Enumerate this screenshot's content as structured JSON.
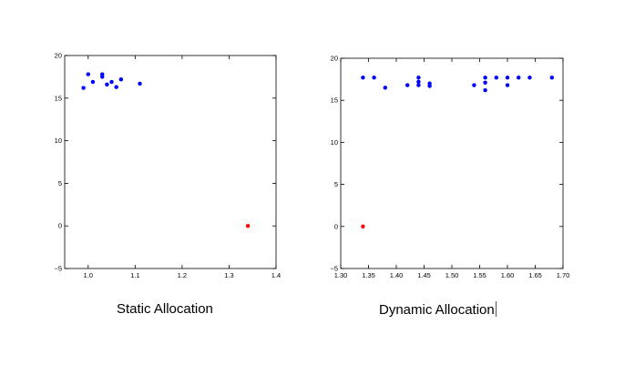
{
  "colors": {
    "series_primary": "#0000ff",
    "series_outlier": "#ff0000",
    "axis": "#000000"
  },
  "chart_data": [
    {
      "type": "scatter",
      "title": "Static Allocation",
      "xlabel": "",
      "ylabel": "",
      "xlim": [
        0.95,
        1.4
      ],
      "ylim": [
        -5,
        20
      ],
      "xticks": [
        "1.0",
        "1.1",
        "1.2",
        "1.3",
        "1.4"
      ],
      "yticks": [
        "−5",
        "0",
        "5",
        "10",
        "15",
        "20"
      ],
      "grid": false,
      "series": [
        {
          "color": "#0000ff",
          "points": [
            [
              0.99,
              16.2
            ],
            [
              1.0,
              17.8
            ],
            [
              1.01,
              16.9
            ],
            [
              1.03,
              17.8
            ],
            [
              1.03,
              17.5
            ],
            [
              1.04,
              16.6
            ],
            [
              1.05,
              16.9
            ],
            [
              1.06,
              16.3
            ],
            [
              1.07,
              17.2
            ],
            [
              1.11,
              16.7
            ]
          ]
        },
        {
          "color": "#ff0000",
          "points": [
            [
              1.34,
              0.0
            ]
          ]
        }
      ]
    },
    {
      "type": "scatter",
      "title": "Dynamic Allocation",
      "xlabel": "",
      "ylabel": "",
      "xlim": [
        1.3,
        1.7
      ],
      "ylim": [
        -5,
        20
      ],
      "xticks": [
        "1.30",
        "1.35",
        "1.40",
        "1.45",
        "1.50",
        "1.55",
        "1.60",
        "1.65",
        "1.70"
      ],
      "yticks": [
        "−5",
        "0",
        "5",
        "10",
        "15",
        "20"
      ],
      "grid": false,
      "series": [
        {
          "color": "#0000ff",
          "points": [
            [
              1.34,
              17.7
            ],
            [
              1.36,
              17.7
            ],
            [
              1.38,
              16.5
            ],
            [
              1.42,
              16.8
            ],
            [
              1.44,
              17.7
            ],
            [
              1.44,
              17.2
            ],
            [
              1.44,
              16.8
            ],
            [
              1.46,
              17.0
            ],
            [
              1.46,
              16.7
            ],
            [
              1.54,
              16.8
            ],
            [
              1.56,
              17.7
            ],
            [
              1.56,
              17.1
            ],
            [
              1.56,
              16.2
            ],
            [
              1.58,
              17.7
            ],
            [
              1.6,
              17.7
            ],
            [
              1.6,
              16.8
            ],
            [
              1.62,
              17.7
            ],
            [
              1.64,
              17.7
            ],
            [
              1.68,
              17.7
            ]
          ]
        },
        {
          "color": "#ff0000",
          "points": [
            [
              1.34,
              0.0
            ]
          ]
        }
      ]
    }
  ]
}
